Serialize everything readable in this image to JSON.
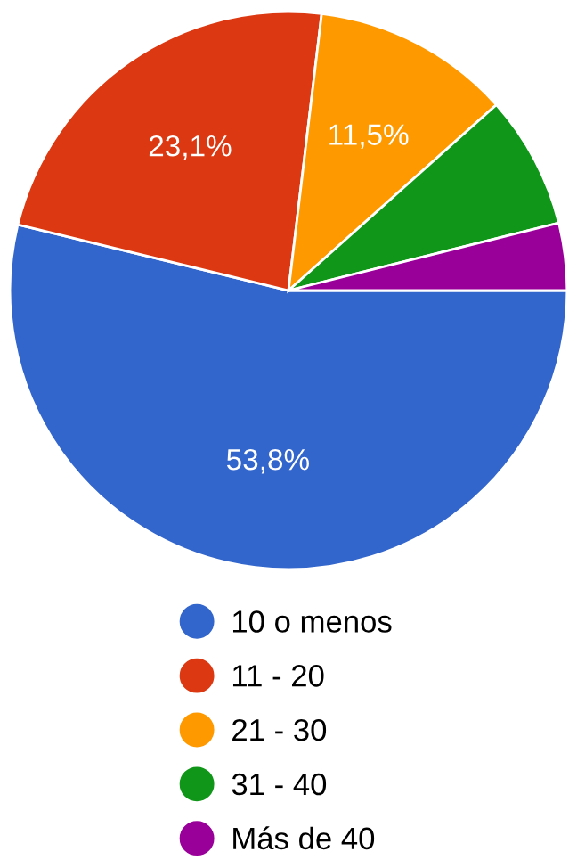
{
  "chart_data": {
    "type": "pie",
    "categories": [
      "10 o menos",
      "11 - 20",
      "21 - 30",
      "31 - 40",
      "Más de 40"
    ],
    "values": [
      53.8,
      23.1,
      11.5,
      7.7,
      3.9
    ],
    "colors": [
      "#3366cc",
      "#dc3912",
      "#ff9900",
      "#109618",
      "#990099"
    ],
    "value_labels": [
      "53,8%",
      "23,1%",
      "11,5%",
      null,
      null
    ],
    "legend": "bottom"
  }
}
